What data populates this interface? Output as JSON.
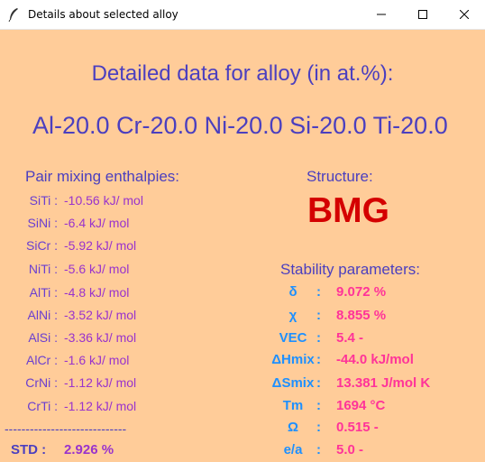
{
  "window": {
    "title": "Details about selected alloy"
  },
  "heading": "Detailed data for alloy (in at.%):",
  "composition": "Al-20.0 Cr-20.0 Ni-20.0 Si-20.0 Ti-20.0",
  "pair_section": {
    "title": "Pair mixing enthalpies:",
    "rows": [
      {
        "pair": "SiTi :",
        "value": "-10.56   kJ/ mol"
      },
      {
        "pair": "SiNi :",
        "value": "-6.4   kJ/ mol"
      },
      {
        "pair": "SiCr :",
        "value": "-5.92   kJ/ mol"
      },
      {
        "pair": "NiTi :",
        "value": "-5.6   kJ/ mol"
      },
      {
        "pair": "AlTi :",
        "value": "-4.8   kJ/ mol"
      },
      {
        "pair": "AlNi :",
        "value": "-3.52   kJ/ mol"
      },
      {
        "pair": "AlSi :",
        "value": "-3.36   kJ/ mol"
      },
      {
        "pair": "AlCr :",
        "value": "-1.6   kJ/ mol"
      },
      {
        "pair": "CrNi :",
        "value": "-1.12   kJ/ mol"
      },
      {
        "pair": "CrTi :",
        "value": "-1.12   kJ/ mol"
      }
    ],
    "divider": "-----------------------------",
    "std_label": "STD :",
    "std_value": "2.926  %"
  },
  "structure": {
    "title": "Structure:",
    "value": "BMG"
  },
  "stability": {
    "title": "Stability parameters:",
    "params": [
      {
        "name": "δ",
        "value": "9.072  %"
      },
      {
        "name": "χ",
        "value": "8.855  %"
      },
      {
        "name": "VEC",
        "value": "5.4  -"
      },
      {
        "name": "ΔHmix",
        "value": "-44.0  kJ/mol"
      },
      {
        "name": "ΔSmix",
        "value": "13.381  J/mol K"
      },
      {
        "name": "Tm",
        "value": "1694  °C"
      },
      {
        "name": "Ω",
        "value": "0.515  -"
      },
      {
        "name": "e/a",
        "value": "5.0  -"
      }
    ]
  }
}
